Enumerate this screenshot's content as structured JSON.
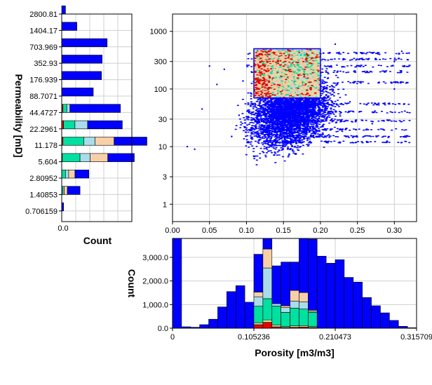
{
  "colors": {
    "blue": "#0000ff",
    "teal": "#00e0a0",
    "lightblue": "#a8dcea",
    "peach": "#f8d0a8",
    "lightgreen": "#c8f0a0",
    "red": "#e80000",
    "edge": "#000000",
    "grid": "#d0d0d0"
  },
  "chart_data": [
    {
      "id": "permeability-histogram",
      "type": "bar",
      "orientation": "horizontal",
      "ylabel": "Permeability [mD]",
      "xlabel": "Count",
      "y_scale": "log",
      "y_ticks": [
        "2800.81",
        "1404.17",
        "703.969",
        "352.93",
        "176.939",
        "88.7071",
        "44.4727",
        "22.2961",
        "11.178",
        "5.604",
        "2.80952",
        "1.40853",
        "0.706159"
      ],
      "x_ticks": [
        "0.0"
      ],
      "bars": [
        {
          "bin": 12,
          "blue": 0.06,
          "teal": 0,
          "lightblue": 0,
          "peach": 0,
          "red": 0
        },
        {
          "bin": 11,
          "blue": 0.24,
          "teal": 0,
          "lightblue": 0,
          "peach": 0,
          "red": 0
        },
        {
          "bin": 10,
          "blue": 0.72,
          "teal": 0,
          "lightblue": 0,
          "peach": 0,
          "red": 0
        },
        {
          "bin": 9,
          "blue": 0.64,
          "teal": 0,
          "lightblue": 0,
          "peach": 0,
          "red": 0
        },
        {
          "bin": 8,
          "blue": 0.63,
          "teal": 0,
          "lightblue": 0,
          "peach": 0,
          "red": 0
        },
        {
          "bin": 7,
          "blue": 0.5,
          "teal": 0,
          "lightblue": 0,
          "peach": 0,
          "red": 0
        },
        {
          "bin": 6,
          "blue": 0.8,
          "teal": 0.06,
          "lightblue": 0.05,
          "peach": 0,
          "red": 0.02
        },
        {
          "bin": 5,
          "blue": 0.55,
          "teal": 0.18,
          "lightblue": 0.2,
          "peach": 0,
          "red": 0.03
        },
        {
          "bin": 4,
          "blue": 0.52,
          "teal": 0.33,
          "lightblue": 0.18,
          "peach": 0.3,
          "red": 0.02
        },
        {
          "bin": 3,
          "blue": 0.42,
          "teal": 0.28,
          "lightblue": 0.16,
          "peach": 0.28,
          "red": 0.01
        },
        {
          "bin": 2,
          "blue": 0.22,
          "teal": 0.06,
          "lightblue": 0.05,
          "peach": 0.1,
          "red": 0
        },
        {
          "bin": 1,
          "blue": 0.2,
          "teal": 0.02,
          "lightblue": 0.02,
          "peach": 0.05,
          "red": 0
        },
        {
          "bin": 0,
          "blue": 0.03,
          "teal": 0,
          "lightblue": 0,
          "peach": 0,
          "red": 0
        }
      ]
    },
    {
      "id": "porosity-permeability-crossplot",
      "type": "scatter",
      "x_ticks": [
        "0.00",
        "0.05",
        "0.10",
        "0.15",
        "0.20",
        "0.25",
        "0.30"
      ],
      "y_ticks": [
        "1000",
        "300",
        "100",
        "30",
        "10",
        "3",
        "1"
      ],
      "xlim": [
        0,
        0.33
      ],
      "ylim": [
        0.5,
        2000
      ],
      "y_scale": "log",
      "grid": true,
      "cutoff_box": {
        "x": [
          0.11,
          0.2
        ],
        "y": [
          70,
          500
        ]
      },
      "series": [
        {
          "color": "blue",
          "points": [
            [
              0.02,
              10
            ],
            [
              0.03,
              9
            ],
            [
              0.04,
              45
            ],
            [
              0.06,
              120
            ],
            [
              0.07,
              220
            ],
            [
              0.08,
              15
            ],
            [
              0.09,
              35
            ],
            [
              0.05,
              250
            ],
            [
              0.22,
              600
            ],
            [
              0.24,
              60
            ],
            [
              0.28,
              400
            ],
            [
              0.3,
              300
            ],
            [
              0.31,
              450
            ],
            [
              0.27,
              25
            ],
            [
              0.3,
              100
            ],
            [
              0.32,
              420
            ]
          ]
        }
      ]
    },
    {
      "id": "porosity-histogram",
      "type": "bar",
      "xlabel": "Porosity [m3/m3]",
      "ylabel": "Count",
      "x_ticks": [
        "0",
        "0.105236",
        "0.210473",
        "0.315709"
      ],
      "y_ticks": [
        "0.0",
        "1,000.0",
        "2,000.0",
        "3,000.0"
      ],
      "xlim": [
        0,
        0.3157
      ],
      "ylim": [
        0,
        3800
      ],
      "bars": [
        {
          "i": 0,
          "blue": 3900,
          "teal": 0,
          "lightblue": 0,
          "peach": 0,
          "lightgreen": 0,
          "red": 0
        },
        {
          "i": 1,
          "blue": 60,
          "teal": 0,
          "lightblue": 0,
          "peach": 0,
          "lightgreen": 0,
          "red": 0
        },
        {
          "i": 2,
          "blue": 40,
          "teal": 0,
          "lightblue": 0,
          "peach": 0,
          "lightgreen": 0,
          "red": 0
        },
        {
          "i": 3,
          "blue": 150,
          "teal": 0,
          "lightblue": 0,
          "peach": 0,
          "lightgreen": 0,
          "red": 0
        },
        {
          "i": 4,
          "blue": 380,
          "teal": 0,
          "lightblue": 0,
          "peach": 0,
          "lightgreen": 0,
          "red": 0
        },
        {
          "i": 5,
          "blue": 900,
          "teal": 0,
          "lightblue": 0,
          "peach": 0,
          "lightgreen": 0,
          "red": 0
        },
        {
          "i": 6,
          "blue": 1550,
          "teal": 0,
          "lightblue": 0,
          "peach": 0,
          "lightgreen": 0,
          "red": 0
        },
        {
          "i": 7,
          "blue": 1800,
          "teal": 0,
          "lightblue": 0,
          "peach": 0,
          "lightgreen": 0,
          "red": 0
        },
        {
          "i": 8,
          "blue": 1100,
          "teal": 0,
          "lightblue": 0,
          "peach": 0,
          "lightgreen": 0,
          "red": 0
        },
        {
          "i": 9,
          "blue": 1600,
          "teal": 700,
          "lightblue": 400,
          "peach": 200,
          "lightgreen": 80,
          "red": 150
        },
        {
          "i": 10,
          "blue": 1050,
          "teal": 900,
          "lightblue": 1300,
          "peach": 800,
          "lightgreen": 100,
          "red": 250
        },
        {
          "i": 11,
          "blue": 1600,
          "teal": 800,
          "lightblue": 100,
          "peach": 0,
          "lightgreen": 80,
          "red": 60
        },
        {
          "i": 12,
          "blue": 1850,
          "teal": 600,
          "lightblue": 200,
          "peach": 80,
          "lightgreen": 40,
          "red": 30
        },
        {
          "i": 13,
          "blue": 1200,
          "teal": 750,
          "lightblue": 300,
          "peach": 450,
          "lightgreen": 60,
          "red": 40
        },
        {
          "i": 14,
          "blue": 2300,
          "teal": 700,
          "lightblue": 300,
          "peach": 400,
          "lightgreen": 60,
          "red": 50
        },
        {
          "i": 15,
          "blue": 3000,
          "teal": 600,
          "lightblue": 50,
          "peach": 50,
          "lightgreen": 40,
          "red": 30
        },
        {
          "i": 16,
          "blue": 3050,
          "teal": 0,
          "lightblue": 0,
          "peach": 0,
          "lightgreen": 0,
          "red": 0
        },
        {
          "i": 17,
          "blue": 2750,
          "teal": 0,
          "lightblue": 0,
          "peach": 0,
          "lightgreen": 0,
          "red": 0
        },
        {
          "i": 18,
          "blue": 2900,
          "teal": 0,
          "lightblue": 0,
          "peach": 0,
          "lightgreen": 0,
          "red": 0
        },
        {
          "i": 19,
          "blue": 2150,
          "teal": 0,
          "lightblue": 0,
          "peach": 0,
          "lightgreen": 0,
          "red": 0
        },
        {
          "i": 20,
          "blue": 1950,
          "teal": 0,
          "lightblue": 0,
          "peach": 0,
          "lightgreen": 0,
          "red": 0
        },
        {
          "i": 21,
          "blue": 1300,
          "teal": 0,
          "lightblue": 0,
          "peach": 0,
          "lightgreen": 0,
          "red": 0
        },
        {
          "i": 22,
          "blue": 950,
          "teal": 0,
          "lightblue": 0,
          "peach": 0,
          "lightgreen": 0,
          "red": 0
        },
        {
          "i": 23,
          "blue": 650,
          "teal": 0,
          "lightblue": 0,
          "peach": 0,
          "lightgreen": 0,
          "red": 0
        },
        {
          "i": 24,
          "blue": 330,
          "teal": 0,
          "lightblue": 0,
          "peach": 0,
          "lightgreen": 0,
          "red": 0
        },
        {
          "i": 25,
          "blue": 80,
          "teal": 0,
          "lightblue": 0,
          "peach": 0,
          "lightgreen": 0,
          "red": 0
        },
        {
          "i": 26,
          "blue": 20,
          "teal": 0,
          "lightblue": 0,
          "peach": 0,
          "lightgreen": 0,
          "red": 0
        }
      ]
    }
  ]
}
